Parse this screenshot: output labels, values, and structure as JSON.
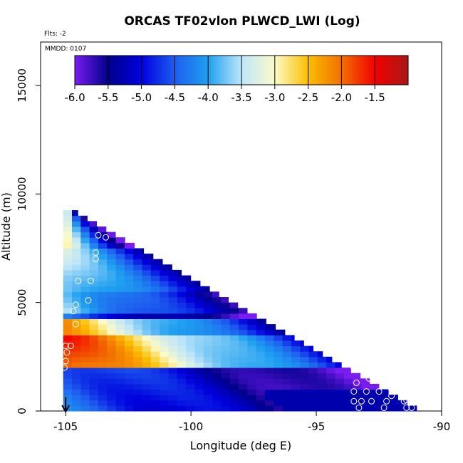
{
  "chart_data": {
    "type": "heatmap",
    "title": "ORCAS TF02vlon PLWCD_LWI (Log)",
    "subtitle_flts": "Flts: -2",
    "subtitle_mmdd": "MMDD: 0107",
    "xlabel": "Longitude (deg E)",
    "ylabel": "Altitude (m)",
    "xlim": [
      -106,
      -90
    ],
    "ylim": [
      0,
      17000
    ],
    "xticks": [
      -105,
      -100,
      -95,
      -90
    ],
    "xtick_labels": [
      "-105",
      "-100",
      "-95",
      "-90"
    ],
    "yticks": [
      0,
      5000,
      10000,
      15000
    ],
    "ytick_labels": [
      "0",
      "5000",
      "10000",
      "15000"
    ],
    "colorbar": {
      "range": [
        -6.0,
        -1.0
      ],
      "ticks": [
        "-6.0",
        "-5.5",
        "-5.0",
        "-4.5",
        "-4.0",
        "-3.5",
        "-3.0",
        "-2.5",
        "-2.0",
        "-1.5"
      ],
      "tick_values": [
        -6.0,
        -5.5,
        -5.0,
        -4.5,
        -4.0,
        -3.5,
        -3.0,
        -2.5,
        -2.0,
        -1.5
      ],
      "colors": [
        "#7a1cf0",
        "#00008b",
        "#0000dd",
        "#1e5ef0",
        "#1fa0f0",
        "#bfe6fa",
        "#fbfbc8",
        "#fbbe00",
        "#f27000",
        "#f20000",
        "#a81818"
      ]
    },
    "triangle": {
      "west_lon": -105.1,
      "west_alt_top": 9200,
      "east_lon": -91.0,
      "alt_step": 250,
      "lon_step": 0.35
    },
    "bands": [
      {
        "alt_min": 2000,
        "alt_max": 3300,
        "value": -1.7,
        "decay": 0.55
      },
      {
        "alt_min": 3400,
        "alt_max": 4200,
        "value": -2.4,
        "decay": 0.5
      },
      {
        "alt_min": 4300,
        "alt_max": 5400,
        "value": -3.6,
        "decay": 0.35
      },
      {
        "alt_min": 5400,
        "alt_max": 7400,
        "value": -3.5,
        "decay": 0.3
      },
      {
        "alt_min": 7400,
        "alt_max": 9300,
        "value": -3.2,
        "decay": 0.5
      },
      {
        "alt_min": 0,
        "alt_max": 2000,
        "value": -4.4,
        "decay": 0.3
      }
    ],
    "marker_arrow_lon": -105.0,
    "flight_points": [
      {
        "lon": -105.05,
        "alt": 2000
      },
      {
        "lon": -105.0,
        "alt": 2300
      },
      {
        "lon": -104.95,
        "alt": 2700
      },
      {
        "lon": -105.0,
        "alt": 3000
      },
      {
        "lon": -104.8,
        "alt": 3000
      },
      {
        "lon": -104.6,
        "alt": 4000
      },
      {
        "lon": -104.7,
        "alt": 4600
      },
      {
        "lon": -104.6,
        "alt": 4900
      },
      {
        "lon": -104.5,
        "alt": 6000
      },
      {
        "lon": -104.0,
        "alt": 6000
      },
      {
        "lon": -104.1,
        "alt": 5100
      },
      {
        "lon": -103.8,
        "alt": 7000
      },
      {
        "lon": -103.8,
        "alt": 7300
      },
      {
        "lon": -103.4,
        "alt": 8000
      },
      {
        "lon": -103.7,
        "alt": 8100
      },
      {
        "lon": -103.1,
        "alt": 8600
      },
      {
        "lon": -103.3,
        "alt": 9100
      },
      {
        "lon": -93.4,
        "alt": 3000
      },
      {
        "lon": -93.5,
        "alt": 2600
      },
      {
        "lon": -93.5,
        "alt": 2000
      },
      {
        "lon": -92.9,
        "alt": 1500
      },
      {
        "lon": -92.7,
        "alt": 1500
      },
      {
        "lon": -93.4,
        "alt": 1300
      },
      {
        "lon": -93.5,
        "alt": 900
      },
      {
        "lon": -93.0,
        "alt": 900
      },
      {
        "lon": -92.5,
        "alt": 900
      },
      {
        "lon": -92.0,
        "alt": 1000
      },
      {
        "lon": -91.6,
        "alt": 900
      },
      {
        "lon": -93.5,
        "alt": 450
      },
      {
        "lon": -93.2,
        "alt": 450
      },
      {
        "lon": -92.8,
        "alt": 450
      },
      {
        "lon": -92.2,
        "alt": 450
      },
      {
        "lon": -92.0,
        "alt": 700
      },
      {
        "lon": -91.5,
        "alt": 450
      },
      {
        "lon": -91.1,
        "alt": 450
      },
      {
        "lon": -93.3,
        "alt": 150
      },
      {
        "lon": -92.3,
        "alt": 150
      },
      {
        "lon": -91.4,
        "alt": 150
      },
      {
        "lon": -91.2,
        "alt": 150
      },
      {
        "lon": -91.4,
        "alt": 500
      }
    ]
  }
}
